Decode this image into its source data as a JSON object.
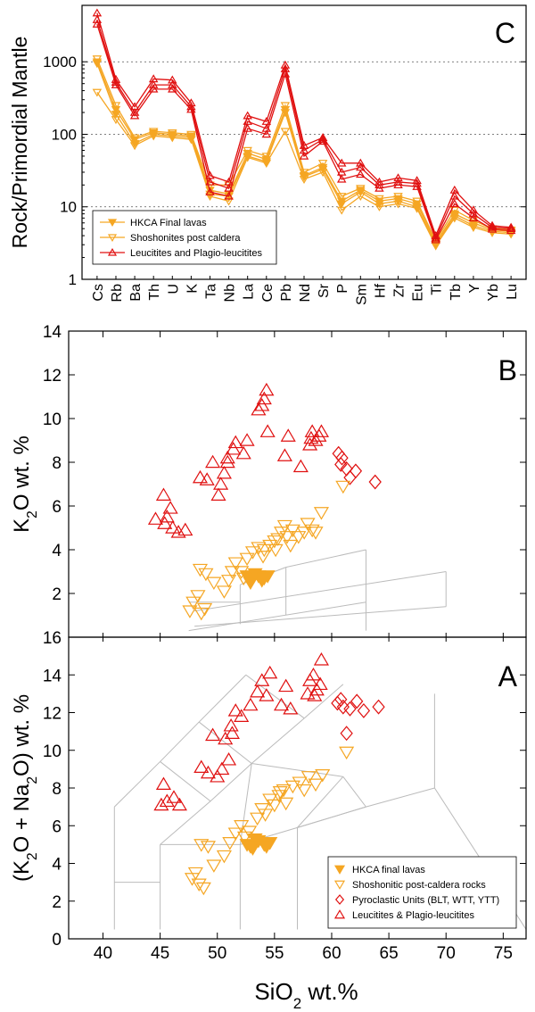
{
  "colors": {
    "orange": "#f5a623",
    "orange_dark": "#e8891c",
    "red": "#e01010",
    "grid": "#bbbbbb"
  },
  "chart_data": [
    {
      "id": "C",
      "type": "line",
      "panel_label": "C",
      "ylabel": "Rock/Primordial Mantle",
      "xlabel": "",
      "yscale": "log",
      "ylim": [
        1,
        6000
      ],
      "yticks": [
        1,
        10,
        100,
        1000
      ],
      "ytick_labels": [
        "1",
        "10",
        "100",
        "1000"
      ],
      "hgrid_dotted": [
        10,
        100,
        1000
      ],
      "legend_position": "bottom-left",
      "categories": [
        "Cs",
        "Rb",
        "Ba",
        "Th",
        "U",
        "K",
        "Ta",
        "Nb",
        "La",
        "Ce",
        "Pb",
        "Nd",
        "Sr",
        "P",
        "Sm",
        "Hf",
        "Zr",
        "Eu",
        "Ti",
        "Tb",
        "Y",
        "Yb",
        "Lu"
      ],
      "series": [
        {
          "name": "HKCA Final lavas",
          "marker": "filled-down-triangle",
          "color": "orange",
          "lines": [
            [
              1000,
              220,
              85,
              105,
              100,
              95,
              17,
              15,
              55,
              45,
              220,
              27,
              35,
              12,
              17,
              12,
              13,
              11,
              3.2,
              8,
              6,
              4.8,
              4.6
            ],
            [
              950,
              190,
              75,
              100,
              95,
              90,
              15,
              14,
              50,
              42,
              200,
              26,
              33,
              11,
              16,
              11,
              12,
              10,
              3.0,
              7.5,
              5.5,
              4.6,
              4.4
            ]
          ]
        },
        {
          "name": "Shoshonites post caldera",
          "marker": "open-down-triangle",
          "color": "orange",
          "lines": [
            [
              1100,
              250,
              90,
              110,
              105,
              100,
              20,
              20,
              60,
              50,
              250,
              30,
              40,
              14,
              18,
              13,
              14,
              12,
              3.4,
              9,
              6.5,
              5,
              4.8
            ],
            [
              380,
              160,
              70,
              95,
              90,
              85,
              14,
              12,
              48,
              40,
              110,
              24,
              30,
              9,
              14,
              10,
              11,
              9.5,
              2.9,
              7,
              5.2,
              4.4,
              4.2
            ]
          ]
        },
        {
          "name": "Leucitites and Plagio-leucitites",
          "marker": "open-up-triangle",
          "color": "red",
          "lines": [
            [
              4700,
              570,
              240,
              580,
              560,
              270,
              27,
              22,
              180,
              150,
              900,
              70,
              90,
              40,
              40,
              22,
              25,
              23,
              4.0,
              17,
              9,
              5.5,
              5.2
            ],
            [
              3800,
              520,
              200,
              480,
              480,
              240,
              22,
              18,
              150,
              120,
              800,
              60,
              85,
              30,
              35,
              20,
              22,
              21,
              3.7,
              14,
              8,
              5.2,
              5.0
            ],
            [
              3300,
              480,
              180,
              420,
              420,
              220,
              16,
              14,
              120,
              100,
              680,
              50,
              80,
              24,
              28,
              18,
              20,
              19,
              3.5,
              11,
              7,
              4.9,
              4.7
            ]
          ]
        }
      ]
    },
    {
      "id": "B",
      "type": "scatter",
      "panel_label": "B",
      "ylabel": "K2O  wt. %",
      "ylim": [
        0,
        14
      ],
      "xlim": [
        37,
        77
      ],
      "yticks": [
        2,
        4,
        6,
        8,
        10,
        12,
        14
      ],
      "ytick_labels": [
        "2",
        "4",
        "6",
        "8",
        "10",
        "12",
        "14"
      ],
      "series": [
        {
          "name": "Leucitites & Plagio-leucitites",
          "marker": "open-up-triangle",
          "color": "red",
          "points": [
            [
              44.6,
              5.4
            ],
            [
              45.4,
              5.2
            ],
            [
              45.3,
              6.5
            ],
            [
              45.9,
              5.9
            ],
            [
              45.6,
              5.5
            ],
            [
              46.1,
              5.0
            ],
            [
              46.6,
              4.8
            ],
            [
              47.2,
              4.9
            ],
            [
              48.5,
              7.3
            ],
            [
              49.1,
              7.2
            ],
            [
              49.6,
              8.0
            ],
            [
              50.1,
              6.5
            ],
            [
              50.3,
              7.0
            ],
            [
              50.6,
              7.5
            ],
            [
              50.9,
              8.2
            ],
            [
              51.4,
              8.6
            ],
            [
              51.6,
              8.9
            ],
            [
              50.9,
              8.0
            ],
            [
              52.6,
              9.0
            ],
            [
              52.3,
              8.4
            ],
            [
              53.6,
              10.4
            ],
            [
              53.9,
              10.6
            ],
            [
              54.3,
              11.3
            ],
            [
              54.4,
              9.4
            ],
            [
              54.1,
              10.9
            ],
            [
              55.9,
              8.3
            ],
            [
              56.2,
              9.2
            ],
            [
              57.3,
              7.8
            ],
            [
              58.1,
              8.8
            ],
            [
              58.3,
              9.4
            ],
            [
              58.6,
              9.0
            ],
            [
              58.2,
              9.1
            ],
            [
              59.1,
              9.4
            ],
            [
              58.9,
              9.2
            ]
          ]
        },
        {
          "name": "Pyroclastic Units (BLT, WTT, YTT)",
          "marker": "open-diamond",
          "color": "red",
          "points": [
            [
              60.6,
              8.4
            ],
            [
              60.9,
              8.2
            ],
            [
              61.3,
              7.7
            ],
            [
              61.6,
              7.3
            ],
            [
              62.1,
              7.6
            ],
            [
              63.8,
              7.1
            ],
            [
              60.8,
              7.9
            ]
          ]
        },
        {
          "name": "HKCA Final lavas",
          "marker": "filled-down-triangle",
          "color": "orange",
          "points": [
            [
              52.6,
              2.8
            ],
            [
              53.1,
              2.7
            ],
            [
              53.6,
              2.8
            ],
            [
              53.9,
              2.6
            ],
            [
              54.4,
              2.8
            ],
            [
              52.9,
              2.5
            ],
            [
              53.3,
              2.9
            ],
            [
              54.1,
              2.7
            ]
          ]
        },
        {
          "name": "Shoshonitic post-caldera rocks",
          "marker": "open-down-triangle",
          "color": "orange",
          "points": [
            [
              47.6,
              1.2
            ],
            [
              47.9,
              1.6
            ],
            [
              48.3,
              1.9
            ],
            [
              48.6,
              1.1
            ],
            [
              48.9,
              1.3
            ],
            [
              48.5,
              3.1
            ],
            [
              49.0,
              2.9
            ],
            [
              49.7,
              2.5
            ],
            [
              50.6,
              2.1
            ],
            [
              51.0,
              2.6
            ],
            [
              51.3,
              3.0
            ],
            [
              51.6,
              3.4
            ],
            [
              52.1,
              3.0
            ],
            [
              52.3,
              2.7
            ],
            [
              52.6,
              3.6
            ],
            [
              53.1,
              3.9
            ],
            [
              53.6,
              4.1
            ],
            [
              54.1,
              4.0
            ],
            [
              54.6,
              4.2
            ],
            [
              55.1,
              4.0
            ],
            [
              55.3,
              4.5
            ],
            [
              55.6,
              4.8
            ],
            [
              55.9,
              5.1
            ],
            [
              56.1,
              4.6
            ],
            [
              56.4,
              4.2
            ],
            [
              56.6,
              4.9
            ],
            [
              57.1,
              4.6
            ],
            [
              57.6,
              4.8
            ],
            [
              57.9,
              5.2
            ],
            [
              58.3,
              4.9
            ],
            [
              58.6,
              4.8
            ],
            [
              59.1,
              5.7
            ],
            [
              61.0,
              6.9
            ],
            [
              55.0,
              4.4
            ],
            [
              54.0,
              3.7
            ]
          ]
        }
      ]
    },
    {
      "id": "A",
      "type": "scatter",
      "panel_label": "A",
      "ylabel": "(K2O + Na2O)  wt. %",
      "xlabel": "SiO2  wt.%",
      "xlim": [
        37,
        77
      ],
      "ylim": [
        0,
        16
      ],
      "xticks": [
        40,
        45,
        50,
        55,
        60,
        65,
        70,
        75
      ],
      "xtick_labels": [
        "40",
        "45",
        "50",
        "55",
        "60",
        "65",
        "70",
        "75"
      ],
      "yticks": [
        0,
        2,
        4,
        6,
        8,
        10,
        12,
        14,
        16
      ],
      "ytick_labels": [
        "0",
        "2",
        "4",
        "6",
        "8",
        "10",
        "12",
        "14",
        "16"
      ],
      "legend_position": "bottom-right",
      "series": [
        {
          "name": "HKCA final lavas",
          "marker": "filled-down-triangle",
          "color": "orange",
          "points": [
            [
              52.6,
              5.0
            ],
            [
              53.1,
              4.8
            ],
            [
              53.6,
              5.2
            ],
            [
              54.1,
              5.0
            ],
            [
              54.6,
              5.1
            ],
            [
              53.3,
              5.3
            ],
            [
              52.9,
              4.9
            ],
            [
              54.3,
              4.9
            ]
          ]
        },
        {
          "name": "Shoshonitic post-caldera rocks",
          "marker": "open-down-triangle",
          "color": "orange",
          "points": [
            [
              47.8,
              3.2
            ],
            [
              48.1,
              3.5
            ],
            [
              48.4,
              2.9
            ],
            [
              48.8,
              2.7
            ],
            [
              48.6,
              5.0
            ],
            [
              49.2,
              4.9
            ],
            [
              49.7,
              3.9
            ],
            [
              50.6,
              4.4
            ],
            [
              51.1,
              5.1
            ],
            [
              51.6,
              5.6
            ],
            [
              52.1,
              6.0
            ],
            [
              52.4,
              5.4
            ],
            [
              52.8,
              5.7
            ],
            [
              53.5,
              6.4
            ],
            [
              53.9,
              6.9
            ],
            [
              54.2,
              6.6
            ],
            [
              54.6,
              7.4
            ],
            [
              55.0,
              7.1
            ],
            [
              55.4,
              7.6
            ],
            [
              55.8,
              7.9
            ],
            [
              56.0,
              7.2
            ],
            [
              56.6,
              8.1
            ],
            [
              57.2,
              8.3
            ],
            [
              57.6,
              7.9
            ],
            [
              58.0,
              8.6
            ],
            [
              58.6,
              8.2
            ],
            [
              59.2,
              8.7
            ],
            [
              61.3,
              9.9
            ],
            [
              55.5,
              7.8
            ]
          ]
        },
        {
          "name": "Pyroclastic Units (BLT, WTT, YTT)",
          "marker": "open-diamond",
          "color": "red",
          "points": [
            [
              60.5,
              12.5
            ],
            [
              61.0,
              12.3
            ],
            [
              61.6,
              12.2
            ],
            [
              62.2,
              12.6
            ],
            [
              62.8,
              12.1
            ],
            [
              64.1,
              12.3
            ],
            [
              61.3,
              10.9
            ],
            [
              60.8,
              12.7
            ]
          ]
        },
        {
          "name": "Leucitites & Plagio-leucitites",
          "marker": "open-up-triangle",
          "color": "red",
          "points": [
            [
              45.3,
              8.2
            ],
            [
              45.6,
              7.3
            ],
            [
              46.2,
              7.5
            ],
            [
              46.7,
              7.1
            ],
            [
              45.1,
              7.1
            ],
            [
              48.6,
              9.1
            ],
            [
              49.2,
              8.8
            ],
            [
              49.6,
              10.8
            ],
            [
              50.0,
              8.6
            ],
            [
              50.4,
              9.0
            ],
            [
              50.7,
              10.6
            ],
            [
              51.0,
              9.5
            ],
            [
              51.2,
              11.3
            ],
            [
              51.6,
              12.1
            ],
            [
              51.3,
              10.9
            ],
            [
              52.1,
              11.8
            ],
            [
              52.9,
              12.4
            ],
            [
              53.5,
              13.1
            ],
            [
              53.9,
              13.7
            ],
            [
              54.3,
              12.9
            ],
            [
              54.6,
              14.1
            ],
            [
              55.6,
              12.4
            ],
            [
              56.4,
              12.2
            ],
            [
              56.0,
              13.4
            ],
            [
              58.1,
              13.7
            ],
            [
              58.4,
              14.0
            ],
            [
              58.7,
              13.2
            ],
            [
              59.1,
              14.8
            ],
            [
              58.5,
              12.9
            ],
            [
              59.0,
              13.5
            ],
            [
              57.9,
              13.0
            ]
          ]
        }
      ]
    }
  ],
  "panel_c_legend": [
    "HKCA Final lavas",
    "Shoshonites post caldera",
    "Leucitites and Plagio-leucitites"
  ],
  "panel_a_legend": [
    "HKCA final lavas",
    "Shoshonitic post-caldera rocks",
    "Pyroclastic Units (BLT, WTT, YTT)",
    "Leucitites & Plagio-leucitites"
  ]
}
